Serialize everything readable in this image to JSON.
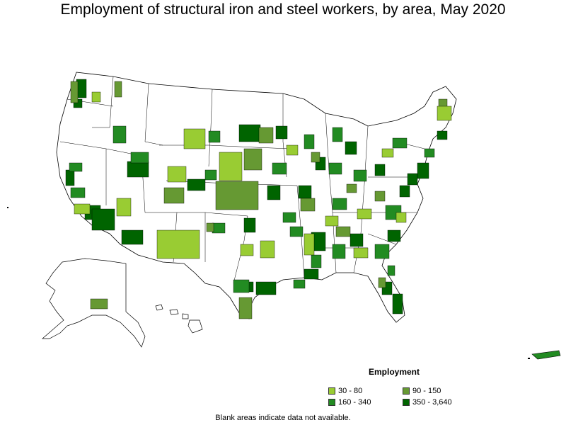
{
  "title": "Employment of structural iron and steel workers, by area, May 2020",
  "legend": {
    "title": "Employment",
    "items": [
      {
        "label": "30 - 80",
        "color": "#99cc33"
      },
      {
        "label": "90 - 150",
        "color": "#669933"
      },
      {
        "label": "160 - 340",
        "color": "#228b22"
      },
      {
        "label": "350 - 3,640",
        "color": "#006400"
      }
    ]
  },
  "footnote": "Blank areas indicate data not available.",
  "colors": {
    "outline": "#000000",
    "no_data": "#ffffff"
  }
}
